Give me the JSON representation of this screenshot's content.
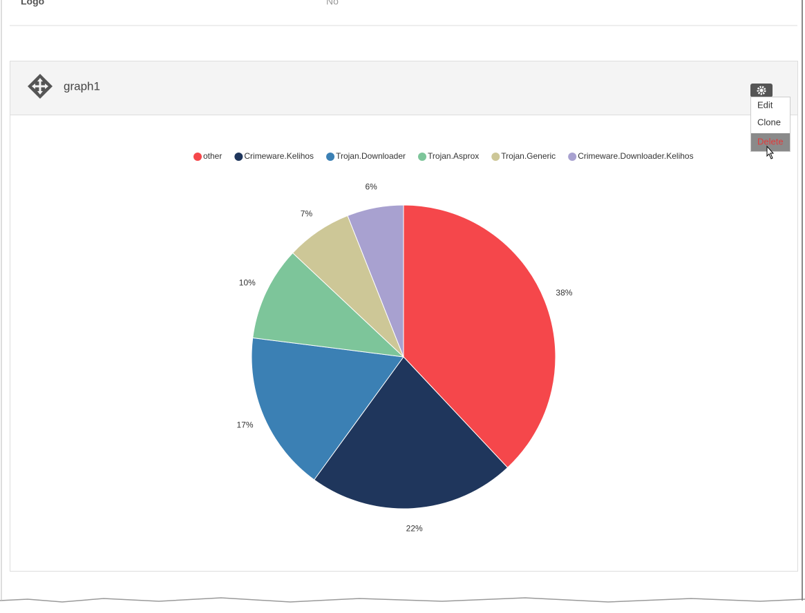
{
  "header_row": {
    "logo": "Logo",
    "value": "No"
  },
  "panel": {
    "title": "graph1",
    "menu": [
      "Edit",
      "Clone",
      "Delete"
    ]
  },
  "chart_data": {
    "type": "pie",
    "categories": [
      "other",
      "Crimeware.Kelihos",
      "Trojan.Downloader",
      "Trojan.Asprox",
      "Trojan.Generic",
      "Crimeware.Downloader.Kelihos"
    ],
    "values": [
      38,
      22,
      17,
      10,
      7,
      6
    ],
    "value_labels": [
      "38%",
      "22%",
      "17%",
      "10%",
      "7%",
      "6%"
    ],
    "colors": [
      "#f5474b",
      "#1f365c",
      "#3b80b4",
      "#7dc59a",
      "#cdc797",
      "#a8a1d0"
    ],
    "legend": "top"
  }
}
